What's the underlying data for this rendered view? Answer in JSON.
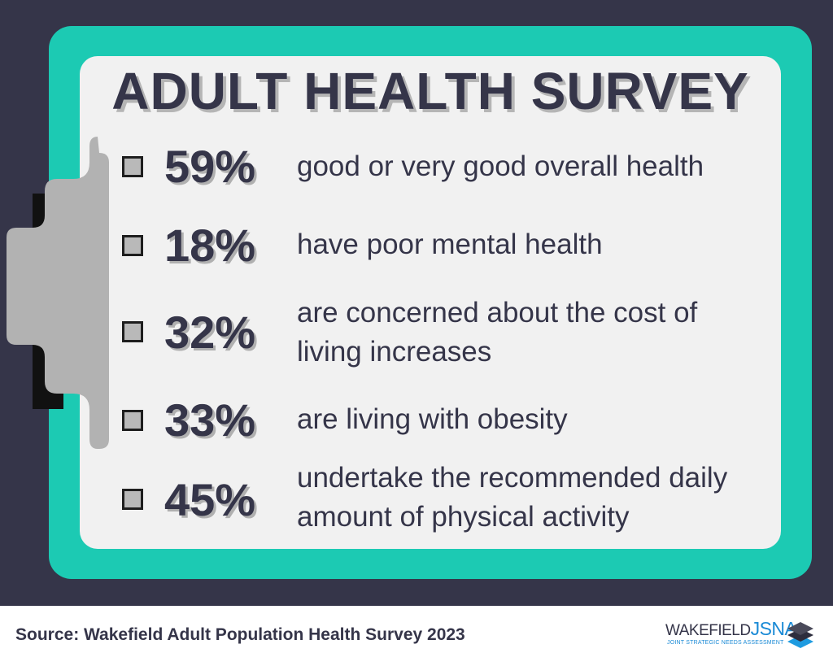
{
  "title": "ADULT HEALTH SURVEY",
  "stats": [
    {
      "value": "59%",
      "line1": "good or very good overall health",
      "line2": ""
    },
    {
      "value": "18%",
      "line1": "have poor mental health",
      "line2": ""
    },
    {
      "value": "32%",
      "line1": "are concerned about the cost of",
      "line2": "living increases"
    },
    {
      "value": "33%",
      "line1": "are living with obesity",
      "line2": ""
    },
    {
      "value": "45%",
      "line1": "undertake the recommended daily",
      "line2": "amount of physical activity"
    }
  ],
  "footer": {
    "source": "Source: Wakefield Adult Population Health Survey 2023",
    "logo_name": "WAKEFIELD",
    "logo_acronym": "JSNA",
    "logo_subtitle": "JOINT STRATEGIC NEEDS ASSESSMENT"
  },
  "colors": {
    "background": "#353549",
    "frame": "#1ccab3",
    "paper": "#f1f1f1",
    "text": "#353549",
    "accent": "#1a8ad6"
  },
  "icons": [
    "clipboard-clip-icon",
    "checkbox-icon",
    "jsna-layers-logo-icon"
  ]
}
